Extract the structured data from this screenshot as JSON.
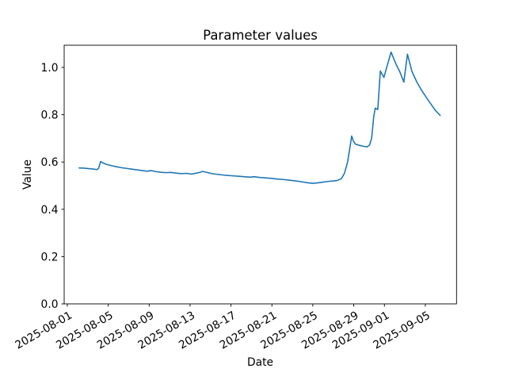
{
  "figure": {
    "background": "#ffffff"
  },
  "chart_data": {
    "type": "line",
    "title": "Parameter values",
    "xlabel": "Date",
    "ylabel": "Value",
    "grid": false,
    "legend": "none",
    "line_color": "#1f77b4",
    "axis_color": "#000000",
    "x_unit": "days since 2025-08-01",
    "xlim_days": [
      -0.31,
      38.05
    ],
    "ylim": [
      0.0,
      1.094
    ],
    "y_ticks": [
      0.0,
      0.2,
      0.4,
      0.6,
      0.8,
      1.0
    ],
    "x_ticks": [
      {
        "day": 0,
        "label": "2025-08-01"
      },
      {
        "day": 4,
        "label": "2025-08-05"
      },
      {
        "day": 8,
        "label": "2025-08-09"
      },
      {
        "day": 12,
        "label": "2025-08-13"
      },
      {
        "day": 16,
        "label": "2025-08-17"
      },
      {
        "day": 20,
        "label": "2025-08-21"
      },
      {
        "day": 24,
        "label": "2025-08-25"
      },
      {
        "day": 28,
        "label": "2025-08-29"
      },
      {
        "day": 31,
        "label": "2025-09-01"
      },
      {
        "day": 35,
        "label": "2025-09-05"
      }
    ],
    "series": [
      {
        "name": "parameter-values",
        "color": "#1f77b4",
        "points": [
          [
            1.15,
            0.575
          ],
          [
            1.6,
            0.574
          ],
          [
            2.1,
            0.572
          ],
          [
            2.6,
            0.57
          ],
          [
            2.9,
            0.568
          ],
          [
            3.05,
            0.573
          ],
          [
            3.25,
            0.602
          ],
          [
            3.45,
            0.597
          ],
          [
            3.7,
            0.592
          ],
          [
            4.0,
            0.588
          ],
          [
            4.4,
            0.584
          ],
          [
            4.8,
            0.58
          ],
          [
            5.3,
            0.576
          ],
          [
            5.8,
            0.573
          ],
          [
            6.3,
            0.57
          ],
          [
            6.8,
            0.567
          ],
          [
            7.3,
            0.564
          ],
          [
            7.85,
            0.561
          ],
          [
            8.15,
            0.564
          ],
          [
            8.6,
            0.56
          ],
          [
            9.1,
            0.557
          ],
          [
            9.6,
            0.555
          ],
          [
            10.1,
            0.556
          ],
          [
            10.6,
            0.553
          ],
          [
            11.1,
            0.551
          ],
          [
            11.65,
            0.552
          ],
          [
            12.15,
            0.549
          ],
          [
            12.75,
            0.554
          ],
          [
            13.25,
            0.56
          ],
          [
            13.75,
            0.555
          ],
          [
            14.25,
            0.55
          ],
          [
            14.85,
            0.547
          ],
          [
            15.45,
            0.544
          ],
          [
            16.05,
            0.542
          ],
          [
            16.65,
            0.54
          ],
          [
            17.25,
            0.538
          ],
          [
            17.85,
            0.536
          ],
          [
            18.25,
            0.538
          ],
          [
            18.75,
            0.535
          ],
          [
            19.35,
            0.533
          ],
          [
            19.95,
            0.531
          ],
          [
            20.55,
            0.528
          ],
          [
            21.15,
            0.526
          ],
          [
            21.75,
            0.523
          ],
          [
            22.35,
            0.52
          ],
          [
            22.95,
            0.516
          ],
          [
            23.55,
            0.512
          ],
          [
            24.0,
            0.51
          ],
          [
            24.5,
            0.512
          ],
          [
            25.0,
            0.515
          ],
          [
            25.5,
            0.518
          ],
          [
            26.0,
            0.52
          ],
          [
            26.4,
            0.522
          ],
          [
            26.8,
            0.53
          ],
          [
            27.1,
            0.553
          ],
          [
            27.4,
            0.6
          ],
          [
            27.65,
            0.668
          ],
          [
            27.8,
            0.71
          ],
          [
            27.95,
            0.69
          ],
          [
            28.15,
            0.676
          ],
          [
            28.5,
            0.671
          ],
          [
            28.9,
            0.667
          ],
          [
            29.3,
            0.664
          ],
          [
            29.55,
            0.672
          ],
          [
            29.75,
            0.7
          ],
          [
            29.95,
            0.79
          ],
          [
            30.1,
            0.828
          ],
          [
            30.35,
            0.822
          ],
          [
            30.6,
            0.985
          ],
          [
            30.95,
            0.958
          ],
          [
            31.3,
            1.012
          ],
          [
            31.65,
            1.065
          ],
          [
            32.1,
            1.017
          ],
          [
            32.5,
            0.982
          ],
          [
            32.9,
            0.938
          ],
          [
            33.25,
            1.056
          ],
          [
            33.7,
            0.982
          ],
          [
            34.15,
            0.94
          ],
          [
            34.6,
            0.906
          ],
          [
            35.05,
            0.876
          ],
          [
            35.5,
            0.848
          ],
          [
            35.95,
            0.82
          ],
          [
            36.45,
            0.797
          ]
        ]
      }
    ]
  }
}
